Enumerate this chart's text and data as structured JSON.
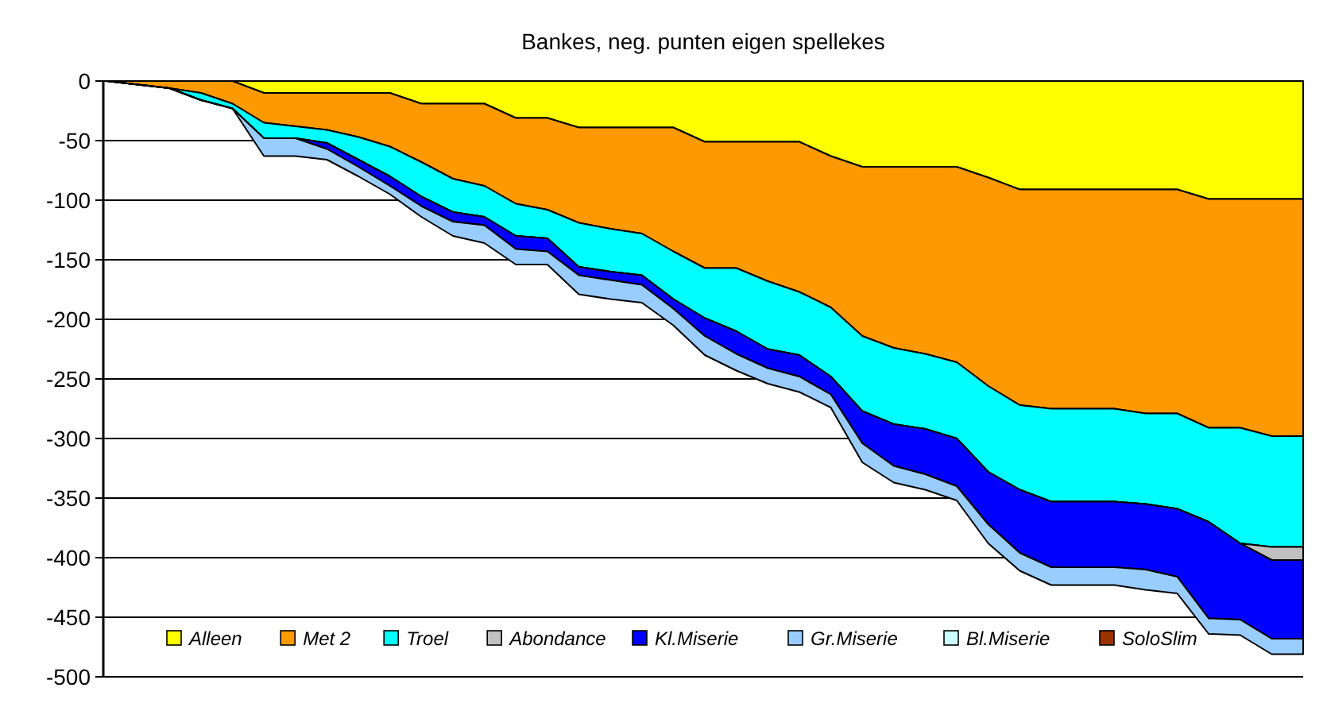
{
  "chart_data": {
    "type": "area",
    "title": "Bankes, neg. punten eigen spellekes",
    "stacked": true,
    "grid": "y",
    "legend": "bottom",
    "categories": [
      null,
      null,
      null,
      null,
      null,
      null,
      null,
      null,
      null,
      null,
      null,
      null,
      null,
      null,
      null,
      null,
      null,
      null,
      null,
      null,
      null,
      null,
      null,
      null,
      null,
      null,
      null,
      null,
      null,
      null,
      null,
      null,
      null,
      null,
      null,
      null,
      null,
      null,
      null
    ],
    "ylim": [
      -500,
      0
    ],
    "yticks": [
      0,
      -50,
      -100,
      -150,
      -200,
      -250,
      -300,
      -350,
      -400,
      -450,
      -500
    ],
    "series": [
      {
        "name": "Alleen",
        "color": "#ffff00",
        "values": [
          0,
          0,
          0,
          0,
          0,
          -10,
          -10,
          -10,
          -10,
          -10,
          -19,
          -19,
          -19,
          -31,
          -31,
          -39,
          -39,
          -39,
          -39,
          -51,
          -51,
          -51,
          -51,
          -63,
          -72,
          -72,
          -72,
          -72,
          -81,
          -91,
          -91,
          -91,
          -91,
          -91,
          -91,
          -99,
          -99,
          -99,
          -99
        ]
      },
      {
        "name": "Met 2",
        "color": "#ff9900",
        "values": [
          0,
          -3,
          -6,
          -10,
          -19,
          -25,
          -28,
          -31,
          -37,
          -45,
          -49,
          -63,
          -69,
          -72,
          -77,
          -80,
          -85,
          -89,
          -104,
          -106,
          -106,
          -117,
          -126,
          -127,
          -142,
          -152,
          -157,
          -164,
          -175,
          -181,
          -184,
          -184,
          -184,
          -188,
          -188,
          -192,
          -192,
          -199,
          -199
        ]
      },
      {
        "name": "Troel",
        "color": "#00ffff",
        "values": [
          0,
          0,
          0,
          -6,
          -4,
          -13,
          -10,
          -11,
          -19,
          -25,
          -29,
          -28,
          -26,
          -27,
          -24,
          -37,
          -36,
          -35,
          -40,
          -42,
          -53,
          -57,
          -53,
          -58,
          -63,
          -64,
          -63,
          -64,
          -72,
          -71,
          -78,
          -78,
          -78,
          -76,
          -80,
          -79,
          -97,
          -93,
          -93
        ]
      },
      {
        "name": "Abondance",
        "color": "#c0c0c0",
        "values": [
          0,
          0,
          0,
          0,
          0,
          0,
          0,
          0,
          0,
          0,
          0,
          0,
          0,
          0,
          0,
          0,
          0,
          0,
          0,
          0,
          0,
          0,
          0,
          0,
          0,
          0,
          0,
          0,
          0,
          0,
          0,
          0,
          0,
          0,
          0,
          0,
          0,
          -11,
          -11
        ]
      },
      {
        "name": "Kl.Miserie",
        "color": "#0000ff",
        "values": [
          0,
          0,
          0,
          0,
          0,
          0,
          0,
          -5,
          -6,
          -8,
          -8,
          -8,
          -7,
          -11,
          -11,
          -7,
          -7,
          -8,
          -8,
          -15,
          -19,
          -16,
          -18,
          -15,
          -27,
          -35,
          -38,
          -40,
          -44,
          -53,
          -55,
          -55,
          -55,
          -55,
          -57,
          -81,
          -64,
          -66,
          -66
        ]
      },
      {
        "name": "Gr.Miserie",
        "color": "#99ccff",
        "values": [
          0,
          0,
          0,
          0,
          0,
          -15,
          -15,
          -9,
          -8,
          -7,
          -9,
          -12,
          -15,
          -13,
          -11,
          -16,
          -16,
          -15,
          -14,
          -16,
          -14,
          -13,
          -13,
          -11,
          -16,
          -14,
          -13,
          -12,
          -16,
          -15,
          -15,
          -15,
          -15,
          -17,
          -14,
          -13,
          -13,
          -13,
          -13
        ]
      },
      {
        "name": "Bl.Miserie",
        "color": "#ccffff",
        "values": [
          null,
          null,
          null,
          null,
          null,
          null,
          null,
          null,
          null,
          null,
          null,
          null,
          null,
          null,
          null,
          null,
          null,
          null,
          null,
          null,
          null,
          null,
          null,
          null,
          null,
          null,
          null,
          null,
          null,
          null,
          null,
          null,
          null,
          null,
          null,
          null,
          null,
          null,
          null
        ]
      },
      {
        "name": "SoloSlim",
        "color": "#993300",
        "values": [
          null,
          null,
          null,
          null,
          null,
          null,
          null,
          null,
          null,
          null,
          null,
          null,
          null,
          null,
          null,
          null,
          null,
          null,
          null,
          null,
          null,
          null,
          null,
          null,
          null,
          null,
          null,
          null,
          null,
          null,
          null,
          null,
          null,
          null,
          null,
          null,
          null,
          null,
          null
        ]
      }
    ]
  }
}
